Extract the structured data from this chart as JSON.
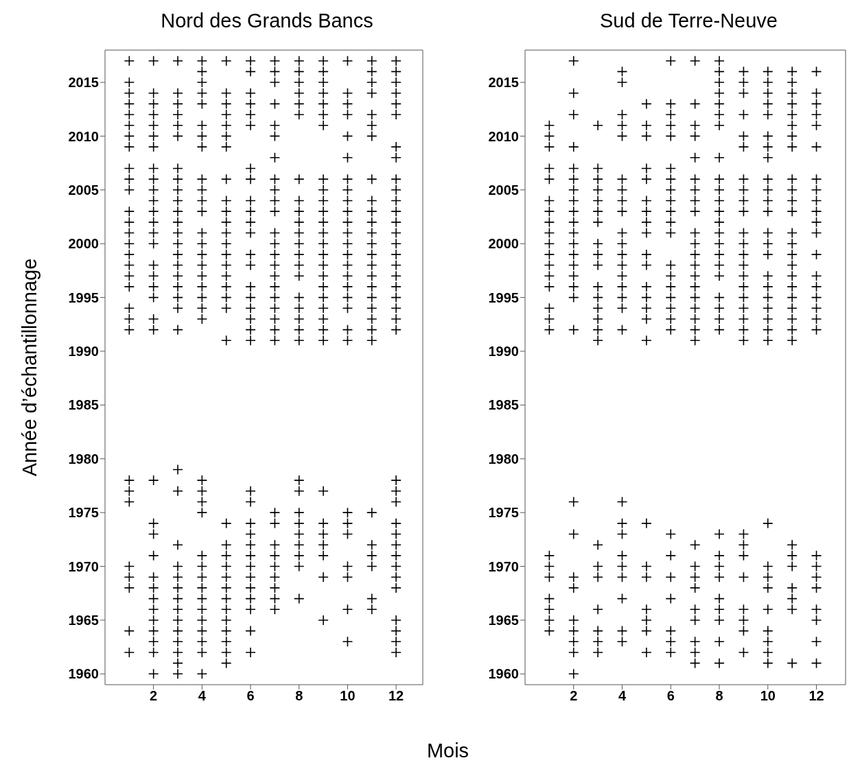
{
  "chart_data": [
    {
      "type": "scatter",
      "title": "Nord des Grands Bancs",
      "xlabel": "Mois",
      "ylabel": "Année d’échantillonnage",
      "xlim": [
        0,
        13.1
      ],
      "xticks": [
        2,
        4,
        6,
        8,
        10,
        12
      ],
      "ylim": [
        1959,
        2018
      ],
      "yticks": [
        1960,
        1965,
        1970,
        1975,
        1980,
        1985,
        1990,
        1995,
        2000,
        2005,
        2010,
        2015
      ],
      "marker": "cross",
      "series": [
        {
          "color": "#000000",
          "x": [
            1,
            1,
            1,
            1,
            1,
            1,
            1,
            1,
            1,
            1,
            1,
            1,
            1,
            1,
            1,
            1,
            1,
            1,
            1,
            1,
            1,
            1,
            1,
            1,
            1,
            1,
            1,
            1,
            1,
            1
          ],
          "values": [
            2017,
            2015,
            2014,
            2013,
            2012,
            2011,
            2010,
            2009,
            2007,
            2006,
            2005,
            2003,
            2002,
            2001,
            2000,
            1999,
            1998,
            1997,
            1996,
            1994,
            1993,
            1992,
            1978,
            1977,
            1976,
            1970,
            1969,
            1968,
            1964,
            1962
          ]
        },
        {
          "color": "#000000",
          "x": [
            2,
            2,
            2,
            2,
            2,
            2,
            2,
            2,
            2,
            2,
            2,
            2,
            2,
            2,
            2,
            2,
            2,
            2,
            2,
            2,
            2,
            2,
            2,
            2,
            2,
            2,
            2,
            2,
            2,
            2,
            2,
            2,
            2,
            2
          ],
          "values": [
            2017,
            2014,
            2013,
            2012,
            2011,
            2010,
            2009,
            2007,
            2006,
            2005,
            2004,
            2003,
            2002,
            2001,
            2000,
            1998,
            1997,
            1996,
            1995,
            1993,
            1992,
            1978,
            1974,
            1973,
            1971,
            1969,
            1968,
            1967,
            1966,
            1965,
            1964,
            1963,
            1962,
            1960
          ]
        },
        {
          "color": "#000000",
          "x": [
            3,
            3,
            3,
            3,
            3,
            3,
            3,
            3,
            3,
            3,
            3,
            3,
            3,
            3,
            3,
            3,
            3,
            3,
            3,
            3,
            3,
            3,
            3,
            3,
            3,
            3,
            3,
            3,
            3,
            3,
            3,
            3,
            3,
            3,
            3
          ],
          "values": [
            2017,
            2014,
            2013,
            2012,
            2011,
            2010,
            2007,
            2006,
            2005,
            2004,
            2003,
            2002,
            2001,
            2000,
            1999,
            1998,
            1997,
            1996,
            1995,
            1994,
            1992,
            1979,
            1977,
            1972,
            1970,
            1969,
            1968,
            1967,
            1966,
            1965,
            1964,
            1963,
            1962,
            1961,
            1960
          ]
        },
        {
          "color": "#000000",
          "x": [
            4,
            4,
            4,
            4,
            4,
            4,
            4,
            4,
            4,
            4,
            4,
            4,
            4,
            4,
            4,
            4,
            4,
            4,
            4,
            4,
            4,
            4,
            4,
            4,
            4,
            4,
            4,
            4,
            4,
            4,
            4,
            4,
            4,
            4,
            4,
            4
          ],
          "values": [
            2017,
            2016,
            2015,
            2014,
            2013,
            2011,
            2010,
            2009,
            2006,
            2005,
            2004,
            2003,
            2001,
            2000,
            1999,
            1998,
            1997,
            1996,
            1995,
            1994,
            1993,
            1978,
            1977,
            1976,
            1975,
            1971,
            1970,
            1969,
            1968,
            1967,
            1966,
            1965,
            1964,
            1963,
            1962,
            1960
          ]
        },
        {
          "color": "#000000",
          "x": [
            5,
            5,
            5,
            5,
            5,
            5,
            5,
            5,
            5,
            5,
            5,
            5,
            5,
            5,
            5,
            5,
            5,
            5,
            5,
            5,
            5,
            5,
            5,
            5,
            5,
            5,
            5,
            5,
            5,
            5,
            5,
            5,
            5
          ],
          "values": [
            2017,
            2014,
            2013,
            2012,
            2011,
            2010,
            2009,
            2006,
            2004,
            2003,
            2002,
            2001,
            2000,
            1999,
            1998,
            1997,
            1996,
            1995,
            1994,
            1991,
            1974,
            1972,
            1971,
            1970,
            1969,
            1968,
            1967,
            1966,
            1965,
            1964,
            1963,
            1962,
            1961
          ]
        },
        {
          "color": "#000000",
          "x": [
            6,
            6,
            6,
            6,
            6,
            6,
            6,
            6,
            6,
            6,
            6,
            6,
            6,
            6,
            6,
            6,
            6,
            6,
            6,
            6,
            6,
            6,
            6,
            6,
            6,
            6,
            6,
            6,
            6,
            6,
            6,
            6,
            6
          ],
          "values": [
            2017,
            2016,
            2014,
            2013,
            2012,
            2011,
            2007,
            2006,
            2004,
            2003,
            2002,
            2001,
            1999,
            1998,
            1996,
            1995,
            1994,
            1993,
            1992,
            1991,
            1977,
            1976,
            1974,
            1973,
            1972,
            1971,
            1970,
            1969,
            1968,
            1967,
            1966,
            1964,
            1962
          ]
        },
        {
          "color": "#000000",
          "x": [
            7,
            7,
            7,
            7,
            7,
            7,
            7,
            7,
            7,
            7,
            7,
            7,
            7,
            7,
            7,
            7,
            7,
            7,
            7,
            7,
            7,
            7,
            7,
            7,
            7,
            7,
            7,
            7,
            7,
            7,
            7
          ],
          "values": [
            2017,
            2016,
            2015,
            2013,
            2011,
            2010,
            2008,
            2006,
            2005,
            2004,
            2003,
            2001,
            2000,
            1999,
            1998,
            1997,
            1996,
            1995,
            1994,
            1993,
            1992,
            1991,
            1975,
            1974,
            1972,
            1971,
            1970,
            1969,
            1968,
            1967,
            1966
          ]
        },
        {
          "color": "#000000",
          "x": [
            8,
            8,
            8,
            8,
            8,
            8,
            8,
            8,
            8,
            8,
            8,
            8,
            8,
            8,
            8,
            8,
            8,
            8,
            8,
            8,
            8,
            8,
            8,
            8,
            8,
            8,
            8,
            8,
            8
          ],
          "values": [
            2017,
            2016,
            2015,
            2014,
            2013,
            2012,
            2006,
            2004,
            2003,
            2002,
            2001,
            2000,
            1999,
            1998,
            1997,
            1995,
            1994,
            1993,
            1992,
            1991,
            1978,
            1977,
            1975,
            1974,
            1973,
            1972,
            1971,
            1970,
            1967
          ]
        },
        {
          "color": "#000000",
          "x": [
            9,
            9,
            9,
            9,
            9,
            9,
            9,
            9,
            9,
            9,
            9,
            9,
            9,
            9,
            9,
            9,
            9,
            9,
            9,
            9,
            9,
            9,
            9,
            9,
            9,
            9,
            9,
            9,
            9,
            9
          ],
          "values": [
            2017,
            2016,
            2015,
            2014,
            2013,
            2012,
            2011,
            2006,
            2005,
            2004,
            2003,
            2002,
            2001,
            2000,
            1999,
            1998,
            1997,
            1996,
            1995,
            1994,
            1993,
            1992,
            1991,
            1977,
            1974,
            1973,
            1972,
            1971,
            1969,
            1965
          ]
        },
        {
          "color": "#000000",
          "x": [
            10,
            10,
            10,
            10,
            10,
            10,
            10,
            10,
            10,
            10,
            10,
            10,
            10,
            10,
            10,
            10,
            10,
            10,
            10,
            10,
            10,
            10,
            10,
            10,
            10,
            10,
            10,
            10
          ],
          "values": [
            2017,
            2014,
            2013,
            2012,
            2010,
            2008,
            2006,
            2005,
            2004,
            2003,
            2002,
            2001,
            2000,
            1999,
            1998,
            1997,
            1996,
            1995,
            1994,
            1992,
            1991,
            1975,
            1974,
            1973,
            1970,
            1969,
            1966,
            1963
          ]
        },
        {
          "color": "#000000",
          "x": [
            11,
            11,
            11,
            11,
            11,
            11,
            11,
            11,
            11,
            11,
            11,
            11,
            11,
            11,
            11,
            11,
            11,
            11,
            11,
            11,
            11,
            11,
            11,
            11,
            11,
            11,
            11,
            11
          ],
          "values": [
            2017,
            2016,
            2015,
            2014,
            2012,
            2011,
            2010,
            2006,
            2004,
            2003,
            2002,
            2001,
            2000,
            1999,
            1998,
            1997,
            1996,
            1995,
            1994,
            1993,
            1992,
            1991,
            1975,
            1972,
            1971,
            1970,
            1967,
            1966
          ]
        },
        {
          "color": "#000000",
          "x": [
            12,
            12,
            12,
            12,
            12,
            12,
            12,
            12,
            12,
            12,
            12,
            12,
            12,
            12,
            12,
            12,
            12,
            12,
            12,
            12,
            12,
            12,
            12,
            12,
            12,
            12,
            12,
            12,
            12,
            12,
            12,
            12,
            12,
            12,
            12,
            12,
            12
          ],
          "values": [
            2017,
            2016,
            2015,
            2014,
            2013,
            2012,
            2009,
            2008,
            2006,
            2005,
            2004,
            2003,
            2002,
            2001,
            2000,
            1999,
            1998,
            1997,
            1996,
            1995,
            1994,
            1993,
            1992,
            1978,
            1977,
            1976,
            1974,
            1973,
            1972,
            1971,
            1970,
            1969,
            1968,
            1965,
            1964,
            1963,
            1962
          ]
        }
      ]
    },
    {
      "type": "scatter",
      "title": "Sud de Terre-Neuve",
      "xlim": [
        0,
        13.2
      ],
      "xticks": [
        2,
        4,
        6,
        8,
        10,
        12
      ],
      "ylim": [
        1959,
        2018
      ],
      "yticks": [
        1960,
        1965,
        1970,
        1975,
        1980,
        1985,
        1990,
        1995,
        2000,
        2005,
        2010,
        2015
      ],
      "marker": "cross",
      "series": [
        {
          "color": "#000000",
          "x": [
            1,
            1,
            1,
            1,
            1,
            1,
            1,
            1,
            1,
            1,
            1,
            1,
            1,
            1,
            1,
            1,
            1,
            1,
            1,
            1,
            1,
            1,
            1,
            1
          ],
          "values": [
            2011,
            2010,
            2009,
            2007,
            2006,
            2004,
            2003,
            2002,
            2001,
            2000,
            1999,
            1998,
            1997,
            1996,
            1994,
            1993,
            1992,
            1971,
            1970,
            1969,
            1967,
            1966,
            1965,
            1964
          ]
        },
        {
          "color": "#000000",
          "x": [
            2,
            2,
            2,
            2,
            2,
            2,
            2,
            2,
            2,
            2,
            2,
            2,
            2,
            2,
            2,
            2,
            2,
            2,
            2,
            2,
            2,
            2,
            2,
            2,
            2,
            2,
            2
          ],
          "values": [
            2017,
            2014,
            2012,
            2009,
            2007,
            2006,
            2005,
            2004,
            2003,
            2002,
            2001,
            2000,
            1999,
            1998,
            1997,
            1996,
            1995,
            1992,
            1976,
            1973,
            1969,
            1968,
            1965,
            1964,
            1963,
            1962,
            1960
          ]
        },
        {
          "color": "#000000",
          "x": [
            3,
            3,
            3,
            3,
            3,
            3,
            3,
            3,
            3,
            3,
            3,
            3,
            3,
            3,
            3,
            3,
            3,
            3,
            3,
            3,
            3,
            3,
            3
          ],
          "values": [
            2011,
            2007,
            2006,
            2005,
            2004,
            2003,
            2002,
            2000,
            1999,
            1998,
            1996,
            1995,
            1994,
            1993,
            1992,
            1991,
            1972,
            1970,
            1969,
            1966,
            1964,
            1963,
            1962
          ]
        },
        {
          "color": "#000000",
          "x": [
            4,
            4,
            4,
            4,
            4,
            4,
            4,
            4,
            4,
            4,
            4,
            4,
            4,
            4,
            4,
            4,
            4,
            4,
            4,
            4,
            4,
            4,
            4,
            4,
            4,
            4,
            4
          ],
          "values": [
            2016,
            2015,
            2012,
            2011,
            2010,
            2006,
            2005,
            2004,
            2003,
            2001,
            2000,
            1999,
            1998,
            1997,
            1996,
            1995,
            1994,
            1992,
            1976,
            1974,
            1973,
            1971,
            1970,
            1969,
            1967,
            1964,
            1963
          ]
        },
        {
          "color": "#000000",
          "x": [
            5,
            5,
            5,
            5,
            5,
            5,
            5,
            5,
            5,
            5,
            5,
            5,
            5,
            5,
            5,
            5,
            5,
            5,
            5,
            5,
            5,
            5,
            5
          ],
          "values": [
            2013,
            2011,
            2010,
            2007,
            2006,
            2004,
            2003,
            2002,
            2001,
            1999,
            1998,
            1996,
            1995,
            1994,
            1993,
            1991,
            1974,
            1970,
            1969,
            1966,
            1965,
            1964,
            1962
          ]
        },
        {
          "color": "#000000",
          "x": [
            6,
            6,
            6,
            6,
            6,
            6,
            6,
            6,
            6,
            6,
            6,
            6,
            6,
            6,
            6,
            6,
            6,
            6,
            6,
            6,
            6,
            6,
            6,
            6,
            6,
            6
          ],
          "values": [
            2017,
            2013,
            2012,
            2011,
            2010,
            2007,
            2006,
            2005,
            2004,
            2003,
            2002,
            2001,
            1998,
            1997,
            1996,
            1995,
            1994,
            1993,
            1992,
            1973,
            1971,
            1969,
            1967,
            1964,
            1963,
            1962
          ]
        },
        {
          "color": "#000000",
          "x": [
            7,
            7,
            7,
            7,
            7,
            7,
            7,
            7,
            7,
            7,
            7,
            7,
            7,
            7,
            7,
            7,
            7,
            7,
            7,
            7,
            7,
            7,
            7,
            7,
            7,
            7,
            7,
            7,
            7
          ],
          "values": [
            2017,
            2013,
            2011,
            2010,
            2008,
            2006,
            2005,
            2004,
            2003,
            2001,
            2000,
            1999,
            1998,
            1997,
            1996,
            1995,
            1994,
            1993,
            1992,
            1991,
            1972,
            1970,
            1969,
            1968,
            1966,
            1965,
            1963,
            1962,
            1961
          ]
        },
        {
          "color": "#000000",
          "x": [
            8,
            8,
            8,
            8,
            8,
            8,
            8,
            8,
            8,
            8,
            8,
            8,
            8,
            8,
            8,
            8,
            8,
            8,
            8,
            8,
            8,
            8,
            8,
            8,
            8,
            8,
            8,
            8,
            8,
            8,
            8
          ],
          "values": [
            2017,
            2016,
            2015,
            2014,
            2013,
            2012,
            2011,
            2008,
            2006,
            2005,
            2004,
            2003,
            2002,
            2001,
            2000,
            1999,
            1998,
            1997,
            1995,
            1994,
            1993,
            1992,
            1973,
            1971,
            1970,
            1969,
            1967,
            1966,
            1965,
            1963,
            1961
          ]
        },
        {
          "color": "#000000",
          "x": [
            9,
            9,
            9,
            9,
            9,
            9,
            9,
            9,
            9,
            9,
            9,
            9,
            9,
            9,
            9,
            9,
            9,
            9,
            9,
            9,
            9,
            9,
            9,
            9,
            9,
            9,
            9,
            9,
            9
          ],
          "values": [
            2016,
            2015,
            2014,
            2012,
            2010,
            2009,
            2006,
            2005,
            2004,
            2003,
            2001,
            2000,
            1999,
            1998,
            1997,
            1996,
            1995,
            1994,
            1993,
            1992,
            1991,
            1973,
            1972,
            1971,
            1969,
            1966,
            1965,
            1964,
            1962
          ]
        },
        {
          "color": "#000000",
          "x": [
            10,
            10,
            10,
            10,
            10,
            10,
            10,
            10,
            10,
            10,
            10,
            10,
            10,
            10,
            10,
            10,
            10,
            10,
            10,
            10,
            10,
            10,
            10,
            10,
            10,
            10,
            10,
            10,
            10,
            10,
            10
          ],
          "values": [
            2016,
            2015,
            2014,
            2013,
            2012,
            2010,
            2009,
            2008,
            2006,
            2005,
            2004,
            2003,
            2001,
            2000,
            1999,
            1997,
            1996,
            1995,
            1994,
            1993,
            1992,
            1991,
            1974,
            1970,
            1969,
            1968,
            1966,
            1964,
            1963,
            1962,
            1961
          ]
        },
        {
          "color": "#000000",
          "x": [
            11,
            11,
            11,
            11,
            11,
            11,
            11,
            11,
            11,
            11,
            11,
            11,
            11,
            11,
            11,
            11,
            11,
            11,
            11,
            11,
            11,
            11,
            11,
            11,
            11,
            11,
            11,
            11,
            11,
            11
          ],
          "values": [
            2016,
            2015,
            2014,
            2013,
            2012,
            2011,
            2010,
            2009,
            2006,
            2005,
            2004,
            2003,
            2001,
            2000,
            1999,
            1998,
            1997,
            1996,
            1995,
            1994,
            1993,
            1992,
            1991,
            1972,
            1971,
            1970,
            1968,
            1967,
            1966,
            1961
          ]
        },
        {
          "color": "#000000",
          "x": [
            12,
            12,
            12,
            12,
            12,
            12,
            12,
            12,
            12,
            12,
            12,
            12,
            12,
            12,
            12,
            12,
            12,
            12,
            12,
            12,
            12,
            12,
            12,
            12,
            12,
            12,
            12
          ],
          "values": [
            2016,
            2014,
            2013,
            2012,
            2011,
            2009,
            2006,
            2005,
            2004,
            2003,
            2002,
            2001,
            1999,
            1997,
            1996,
            1995,
            1994,
            1993,
            1992,
            1971,
            1970,
            1969,
            1968,
            1966,
            1965,
            1963,
            1961
          ]
        }
      ]
    }
  ]
}
